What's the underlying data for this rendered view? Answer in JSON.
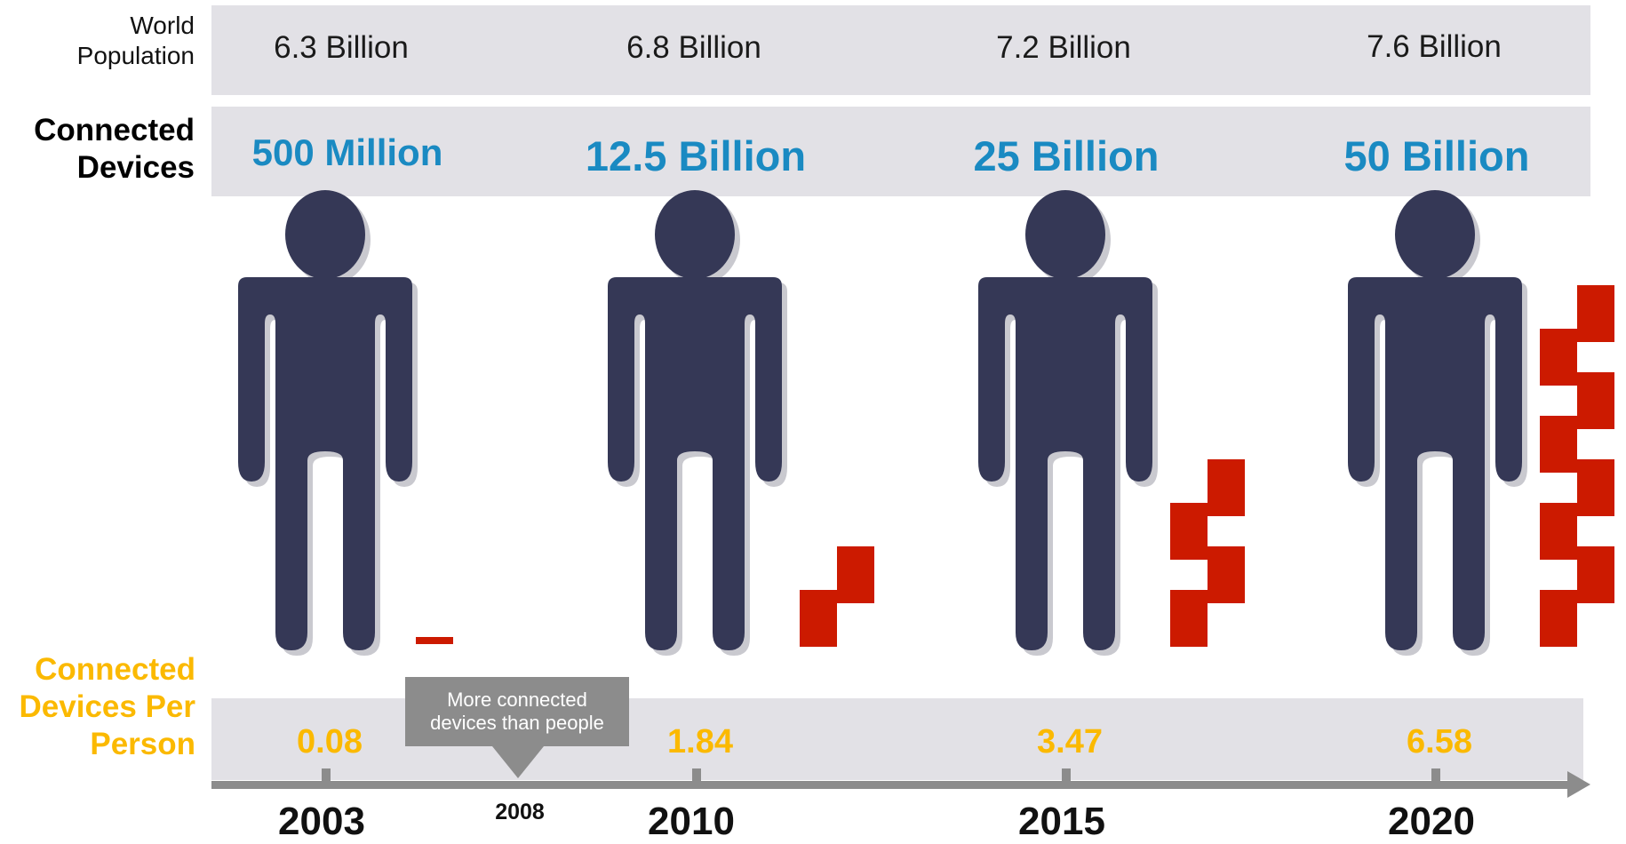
{
  "labels": {
    "world_population": [
      "World",
      "Population"
    ],
    "connected_devices": [
      "Connected",
      "Devices"
    ],
    "devices_per_person": [
      "Connected",
      "Devices Per",
      "Person"
    ]
  },
  "years": [
    "2003",
    "2010",
    "2015",
    "2020"
  ],
  "world_population": [
    "6.3 Billion",
    "6.8 Billion",
    "7.2 Billion",
    "7.6 Billion"
  ],
  "connected_devices": [
    "500 Million",
    "12.5 Billion",
    "25 Billion",
    "50 Billion"
  ],
  "devices_per_person": [
    "0.08",
    "1.84",
    "3.47",
    "6.58"
  ],
  "milestone": {
    "year": "2008",
    "callout": [
      "More connected",
      "devices than people"
    ]
  },
  "device_blocks": [
    0,
    2,
    4,
    8
  ],
  "colors": {
    "person": "#353856",
    "device": "#cc1a00",
    "devices_text": "#1a8ac2",
    "per_person_text": "#fbb900",
    "band": "#e2e1e6",
    "timeline": "#8c8c8c"
  },
  "icons": {
    "person": "person-icon",
    "device": "device-block-icon"
  }
}
